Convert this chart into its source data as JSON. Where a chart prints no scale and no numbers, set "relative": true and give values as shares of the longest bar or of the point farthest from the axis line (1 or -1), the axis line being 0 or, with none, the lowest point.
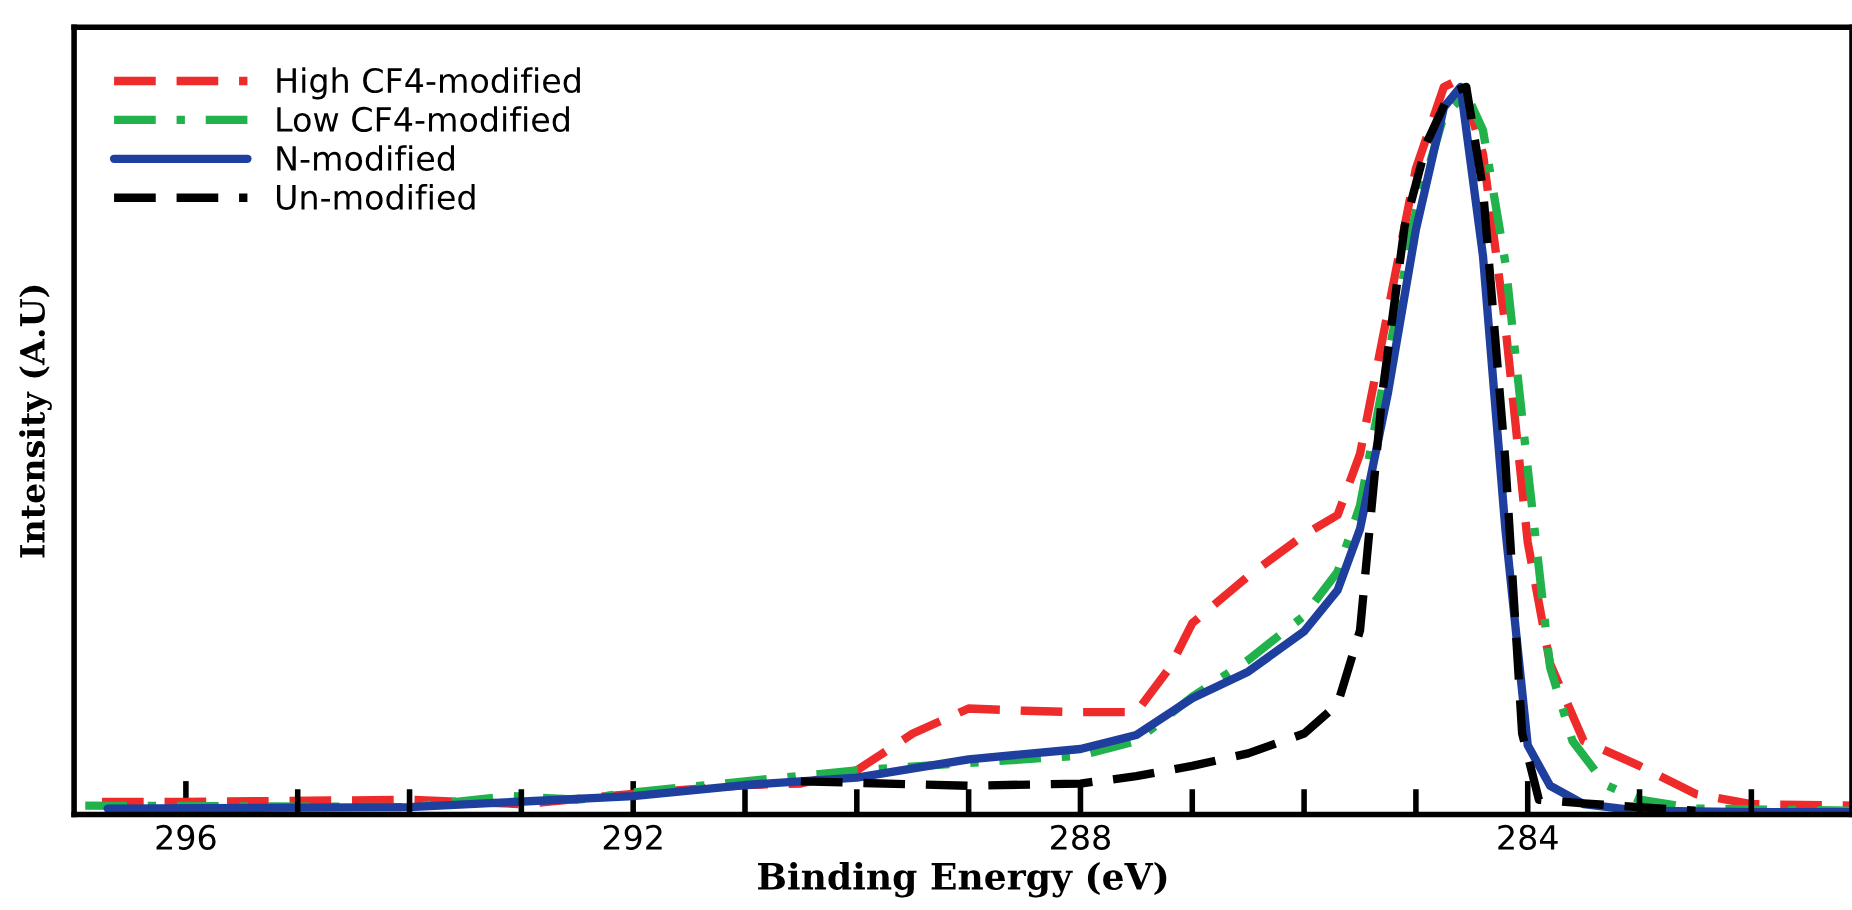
{
  "chart_data": {
    "type": "line",
    "xlabel": "Binding Energy (eV)",
    "ylabel": "Intensity (A.U)",
    "relative": true,
    "legend": "top left",
    "grid": false,
    "xlim": [
      297,
      281.1
    ],
    "xticks": [
      {
        "value": 296,
        "label": "296"
      },
      {
        "value": 295,
        "label": null
      },
      {
        "value": 294,
        "label": null
      },
      {
        "value": 293,
        "label": null
      },
      {
        "value": 292,
        "label": "292"
      },
      {
        "value": 291,
        "label": null
      },
      {
        "value": 290,
        "label": null
      },
      {
        "value": 289,
        "label": null
      },
      {
        "value": 288,
        "label": "288"
      },
      {
        "value": 287,
        "label": null
      },
      {
        "value": 286,
        "label": null
      },
      {
        "value": 285,
        "label": null
      },
      {
        "value": 284,
        "label": "284"
      },
      {
        "value": 283,
        "label": null
      },
      {
        "value": 282,
        "label": null
      }
    ],
    "series": [
      {
        "name": "High CF4-modified",
        "color": "#ee2a2a",
        "line_style": "dashed",
        "x": [
          296.75,
          296,
          294,
          293,
          292,
          291,
          290.5,
          290,
          289.5,
          289,
          288.5,
          288,
          287.5,
          287.2,
          287,
          286.5,
          286,
          285.7,
          285.5,
          285.25,
          285,
          284.75,
          284.6,
          284.4,
          284.2,
          284,
          283.8,
          283.5,
          283,
          282.5,
          282,
          281.1
        ],
        "values": [
          0.017,
          0.017,
          0.02,
          0.014,
          0.028,
          0.04,
          0.042,
          0.06,
          0.11,
          0.144,
          0.141,
          0.139,
          0.139,
          0.2,
          0.26,
          0.324,
          0.38,
          0.407,
          0.49,
          0.684,
          0.878,
          0.989,
          1,
          0.898,
          0.665,
          0.37,
          0.205,
          0.1,
          0.066,
          0.028,
          0.014,
          0.012
        ]
      },
      {
        "name": "Low CF4-modified",
        "color": "#22b24c",
        "line_style": "dashdot",
        "x": [
          296.9,
          294,
          293.1,
          292.5,
          292,
          291,
          290,
          289,
          288,
          287.5,
          287,
          286.5,
          286,
          285.7,
          285.5,
          285.25,
          285,
          284.75,
          284.55,
          284.4,
          284.2,
          284,
          283.8,
          283.6,
          283.3,
          283,
          282.5,
          281.1
        ],
        "values": [
          0.012,
          0.01,
          0.025,
          0.02,
          0.03,
          0.045,
          0.06,
          0.07,
          0.08,
          0.1,
          0.16,
          0.21,
          0.27,
          0.33,
          0.42,
          0.62,
          0.82,
          0.95,
          0.98,
          0.93,
          0.75,
          0.47,
          0.2,
          0.1,
          0.04,
          0.02,
          0.008,
          0.005
        ]
      },
      {
        "name": "N-modified",
        "color": "#1f3f9f",
        "line_style": "solid",
        "x": [
          296.7,
          294,
          292,
          291,
          290,
          289,
          288,
          287.5,
          287,
          286.5,
          286,
          285.7,
          285.5,
          285.25,
          285,
          284.75,
          284.6,
          284.4,
          284.2,
          284,
          283.8,
          283.5,
          283,
          282,
          281.1
        ],
        "values": [
          0.008,
          0.01,
          0.025,
          0.04,
          0.05,
          0.075,
          0.089,
          0.108,
          0.158,
          0.194,
          0.249,
          0.305,
          0.388,
          0.573,
          0.795,
          0.961,
          0.989,
          0.759,
          0.388,
          0.094,
          0.039,
          0.014,
          0.005,
          0.003,
          0.003
        ]
      },
      {
        "name": "Un-modified",
        "color": "#000000",
        "line_style": "dashed",
        "x": [
          290.5,
          289,
          288,
          287.5,
          287,
          286.5,
          286,
          285.7,
          285.5,
          285.3,
          285.1,
          284.9,
          284.7,
          284.55,
          284.4,
          284.2,
          284.05,
          283.9,
          283.5,
          283,
          282.5
        ],
        "values": [
          0.045,
          0.039,
          0.042,
          0.052,
          0.066,
          0.083,
          0.11,
          0.15,
          0.25,
          0.573,
          0.8,
          0.914,
          0.98,
          0.989,
          0.85,
          0.48,
          0.11,
          0.02,
          0.015,
          0.01,
          0.005
        ]
      }
    ]
  }
}
